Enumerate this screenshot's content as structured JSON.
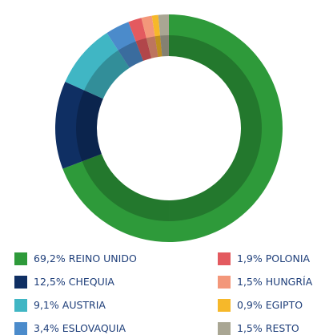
{
  "chart_data": {
    "type": "pie",
    "categories": [
      "REINO UNIDO",
      "CHEQUIA",
      "AUSTRIA",
      "ESLOVAQUIA",
      "POLONIA",
      "HUNGRÍA",
      "EGIPTO",
      "RESTO"
    ],
    "values": [
      69.2,
      12.5,
      9.1,
      3.4,
      1.9,
      1.5,
      0.9,
      1.5
    ],
    "value_labels": [
      "69,2%",
      "12,5%",
      "9,1%",
      "3,4%",
      "1,9%",
      "1,5%",
      "0,9%",
      "1,5%"
    ],
    "colors": [
      "#2e9a3a",
      "#0f2f63",
      "#40b6c4",
      "#4b8bcb",
      "#e35a5f",
      "#f3977a",
      "#f6b82a",
      "#a9a693"
    ],
    "legend": "bottom"
  }
}
